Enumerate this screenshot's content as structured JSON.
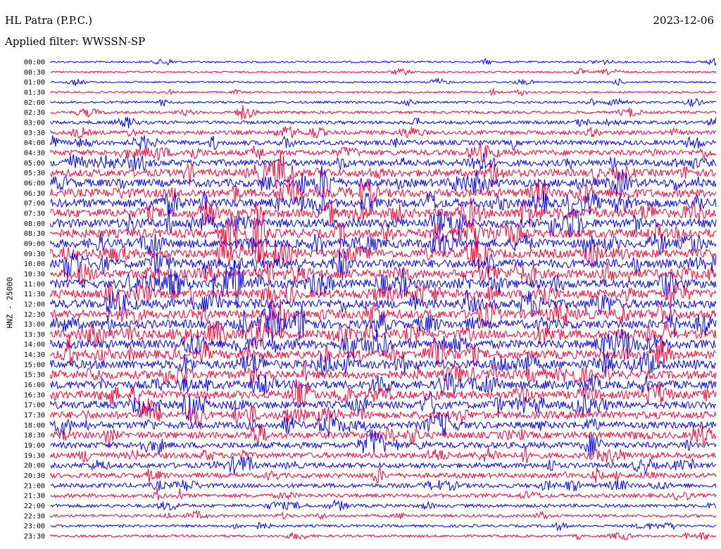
{
  "header": {
    "station": "HL Patra (P.P.C.)",
    "filter": "Applied filter: WWSSN-SP",
    "date": "2023-12-06"
  },
  "chart_data": {
    "type": "line",
    "title": "HL Patra (P.P.C.)",
    "ylabel": "HNZ - 25000",
    "trace_colors": [
      "#0000ff",
      "#ff0033"
    ],
    "rows": [
      "00:00",
      "00:30",
      "01:00",
      "01:30",
      "02:00",
      "02:30",
      "03:00",
      "03:30",
      "04:00",
      "04:30",
      "05:00",
      "05:30",
      "06:00",
      "06:30",
      "07:00",
      "07:30",
      "08:00",
      "08:30",
      "09:00",
      "09:30",
      "10:00",
      "10:30",
      "11:00",
      "11:30",
      "12:00",
      "12:30",
      "13:00",
      "13:30",
      "14:00",
      "14:30",
      "15:00",
      "15:30",
      "16:00",
      "16:30",
      "17:00",
      "17:30",
      "18:00",
      "18:30",
      "19:00",
      "19:30",
      "20:00",
      "20:30",
      "21:00",
      "21:30",
      "22:00",
      "22:30",
      "23:00",
      "23:30"
    ],
    "row_intensity": [
      0.12,
      0.1,
      0.12,
      0.14,
      0.18,
      0.24,
      0.32,
      0.4,
      0.5,
      0.6,
      0.72,
      0.82,
      0.9,
      0.95,
      1.0,
      1.0,
      1.0,
      1.0,
      1.0,
      1.0,
      1.0,
      1.0,
      1.0,
      1.0,
      1.0,
      1.0,
      1.0,
      1.0,
      1.0,
      1.0,
      0.98,
      0.95,
      0.92,
      0.88,
      0.85,
      0.82,
      0.78,
      0.72,
      0.66,
      0.6,
      0.55,
      0.5,
      0.45,
      0.38,
      0.32,
      0.26,
      0.22,
      0.2
    ]
  }
}
